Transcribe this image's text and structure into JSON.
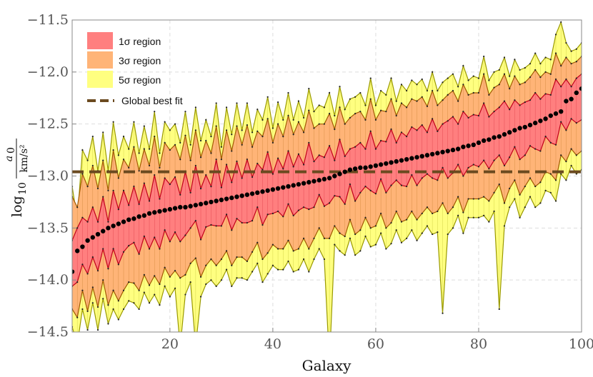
{
  "chart_data": {
    "type": "area",
    "title": "",
    "xlabel": "Galaxy",
    "ylabel": {
      "prefix": "log",
      "subscript": "10",
      "numerator": "a",
      "numerator_subscript": "0",
      "denominator": "km/s²"
    },
    "xlim": [
      1,
      100
    ],
    "ylim": [
      -14.5,
      -11.5
    ],
    "x_ticks": [
      20,
      40,
      60,
      80,
      100
    ],
    "y_ticks": [
      -11.5,
      -12.0,
      -12.5,
      -13.0,
      -13.5,
      -14.0,
      -14.5
    ],
    "y_tick_labels": [
      "−11.5",
      "−12.0",
      "−12.5",
      "−13.0",
      "−13.5",
      "−14.0",
      "−14.5"
    ],
    "grid": true,
    "legend_position": "top-left",
    "global_best_fit": -12.96,
    "colors": {
      "band1": "#ff7f7f",
      "band1_edge": "#c0001a",
      "band3": "#ffb477",
      "band3_edge": "#a05a00",
      "band5": "#ffff80",
      "band5_edge": "#999900",
      "best_fit_line": "#6b4a20",
      "points": "#000000"
    },
    "series": [
      {
        "name": "1σ region",
        "kind": "band",
        "level": 1
      },
      {
        "name": "3σ region",
        "kind": "band",
        "level": 3
      },
      {
        "name": "5σ region",
        "kind": "band",
        "level": 5
      },
      {
        "name": "Global best fit",
        "kind": "line"
      }
    ],
    "x": [
      1,
      2,
      3,
      4,
      5,
      6,
      7,
      8,
      9,
      10,
      11,
      12,
      13,
      14,
      15,
      16,
      17,
      18,
      19,
      20,
      21,
      22,
      23,
      24,
      25,
      26,
      27,
      28,
      29,
      30,
      31,
      32,
      33,
      34,
      35,
      36,
      37,
      38,
      39,
      40,
      41,
      42,
      43,
      44,
      45,
      46,
      47,
      48,
      49,
      50,
      51,
      52,
      53,
      54,
      55,
      56,
      57,
      58,
      59,
      60,
      61,
      62,
      63,
      64,
      65,
      66,
      67,
      68,
      69,
      70,
      71,
      72,
      73,
      74,
      75,
      76,
      77,
      78,
      79,
      80,
      81,
      82,
      83,
      84,
      85,
      86,
      87,
      88,
      89,
      90,
      91,
      92,
      93,
      94,
      95,
      96,
      97,
      98,
      99,
      100
    ],
    "best": [
      -13.92,
      -13.72,
      -13.68,
      -13.62,
      -13.59,
      -13.56,
      -13.53,
      -13.5,
      -13.48,
      -13.46,
      -13.44,
      -13.42,
      -13.41,
      -13.39,
      -13.38,
      -13.36,
      -13.35,
      -13.34,
      -13.33,
      -13.32,
      -13.31,
      -13.3,
      -13.3,
      -13.29,
      -13.28,
      -13.27,
      -13.26,
      -13.25,
      -13.24,
      -13.23,
      -13.22,
      -13.21,
      -13.2,
      -13.19,
      -13.18,
      -13.17,
      -13.16,
      -13.15,
      -13.14,
      -13.13,
      -13.12,
      -13.11,
      -13.1,
      -13.09,
      -13.08,
      -13.07,
      -13.06,
      -13.05,
      -13.04,
      -13.03,
      -13.02,
      -13.0,
      -12.98,
      -12.96,
      -12.94,
      -12.93,
      -12.92,
      -12.92,
      -12.91,
      -12.9,
      -12.89,
      -12.88,
      -12.87,
      -12.86,
      -12.85,
      -12.84,
      -12.83,
      -12.82,
      -12.81,
      -12.8,
      -12.79,
      -12.78,
      -12.77,
      -12.76,
      -12.75,
      -12.74,
      -12.72,
      -12.71,
      -12.7,
      -12.68,
      -12.66,
      -12.65,
      -12.63,
      -12.62,
      -12.6,
      -12.58,
      -12.56,
      -12.54,
      -12.53,
      -12.51,
      -12.49,
      -12.47,
      -12.45,
      -12.42,
      -12.4,
      -12.38,
      -12.28,
      -12.26,
      -12.2,
      -12.16
    ],
    "upper1": [
      -13.62,
      -13.5,
      -13.4,
      -13.44,
      -13.3,
      -13.44,
      -13.2,
      -13.44,
      -13.14,
      -13.32,
      -13.14,
      -13.28,
      -13.1,
      -13.27,
      -13.07,
      -13.24,
      -12.99,
      -13.22,
      -13.02,
      -13.08,
      -13.01,
      -13.18,
      -12.96,
      -13.16,
      -12.9,
      -13.12,
      -12.99,
      -13.1,
      -12.84,
      -13.11,
      -12.89,
      -13.06,
      -12.86,
      -13.02,
      -12.84,
      -13.01,
      -12.88,
      -12.94,
      -12.77,
      -12.98,
      -12.83,
      -12.93,
      -12.76,
      -12.91,
      -12.79,
      -12.89,
      -12.68,
      -12.86,
      -12.8,
      -12.82,
      -12.71,
      -12.85,
      -12.65,
      -12.81,
      -12.74,
      -12.72,
      -12.68,
      -12.74,
      -12.57,
      -12.74,
      -12.66,
      -12.67,
      -12.55,
      -12.68,
      -12.58,
      -12.62,
      -12.53,
      -12.56,
      -12.51,
      -12.58,
      -12.45,
      -12.57,
      -12.5,
      -12.47,
      -12.43,
      -12.5,
      -12.38,
      -12.44,
      -12.41,
      -12.42,
      -12.3,
      -12.43,
      -12.38,
      -12.34,
      -12.28,
      -12.36,
      -12.27,
      -12.32,
      -12.29,
      -12.27,
      -12.2,
      -12.26,
      -12.21,
      -12.22,
      -12.07,
      -12.14,
      -12.07,
      -12.14,
      -12.06,
      -12.02
    ],
    "lower1": [
      -14.06,
      -14.02,
      -13.85,
      -13.94,
      -13.78,
      -13.91,
      -13.7,
      -13.89,
      -13.7,
      -13.85,
      -13.73,
      -13.67,
      -13.64,
      -13.75,
      -13.58,
      -13.7,
      -13.59,
      -13.7,
      -13.52,
      -13.63,
      -13.54,
      -13.63,
      -13.57,
      -13.5,
      -13.43,
      -13.61,
      -13.49,
      -13.47,
      -13.48,
      -13.48,
      -13.37,
      -13.52,
      -13.41,
      -13.45,
      -13.45,
      -13.43,
      -13.3,
      -13.47,
      -13.37,
      -13.36,
      -13.34,
      -13.39,
      -13.27,
      -13.38,
      -13.33,
      -13.3,
      -13.32,
      -13.3,
      -13.18,
      -13.29,
      -13.26,
      -13.19,
      -13.2,
      -13.27,
      -13.08,
      -13.24,
      -13.16,
      -13.1,
      -13.14,
      -13.17,
      -13.03,
      -13.16,
      -13.09,
      -13.04,
      -13.09,
      -13.1,
      -12.99,
      -13.09,
      -13.02,
      -12.98,
      -13.02,
      -13.04,
      -12.92,
      -13.02,
      -12.97,
      -12.89,
      -13.0,
      -12.92,
      -12.89,
      -12.91,
      -12.85,
      -12.93,
      -12.85,
      -12.8,
      -12.9,
      -12.82,
      -12.72,
      -12.84,
      -12.8,
      -12.71,
      -12.74,
      -12.76,
      -12.62,
      -12.68,
      -12.7,
      -12.48,
      -12.56,
      -12.45,
      -12.49,
      -12.46
    ],
    "upper3": [
      -13.2,
      -13.3,
      -12.98,
      -13.1,
      -12.9,
      -13.12,
      -12.85,
      -13.14,
      -12.75,
      -13.02,
      -12.84,
      -12.92,
      -12.72,
      -12.95,
      -12.74,
      -12.9,
      -12.62,
      -12.92,
      -12.68,
      -12.75,
      -12.7,
      -12.84,
      -12.61,
      -12.85,
      -12.56,
      -12.82,
      -12.66,
      -12.78,
      -12.52,
      -12.84,
      -12.56,
      -12.76,
      -12.52,
      -12.7,
      -12.51,
      -12.72,
      -12.57,
      -12.62,
      -12.45,
      -12.68,
      -12.5,
      -12.62,
      -12.42,
      -12.6,
      -12.48,
      -12.58,
      -12.37,
      -12.54,
      -12.5,
      -12.5,
      -12.4,
      -12.55,
      -12.34,
      -12.5,
      -12.44,
      -12.4,
      -12.38,
      -12.46,
      -12.26,
      -12.46,
      -12.37,
      -12.38,
      -12.26,
      -12.42,
      -12.3,
      -12.34,
      -12.26,
      -12.28,
      -12.24,
      -12.33,
      -12.18,
      -12.32,
      -12.27,
      -12.22,
      -12.18,
      -12.28,
      -12.12,
      -12.22,
      -12.2,
      -12.2,
      -12.02,
      -12.22,
      -12.15,
      -12.12,
      -12.02,
      -12.16,
      -12.04,
      -12.12,
      -12.1,
      -12.05,
      -11.98,
      -12.05,
      -12.0,
      -12.02,
      -11.82,
      -11.94,
      -11.86,
      -11.92,
      -11.9,
      -11.85
    ],
    "lower3": [
      -14.28,
      -14.36,
      -14.1,
      -14.3,
      -14.07,
      -14.26,
      -14.0,
      -14.24,
      -14.1,
      -14.2,
      -14.1,
      -14.02,
      -14.03,
      -14.1,
      -13.95,
      -14.05,
      -13.96,
      -14.04,
      -13.88,
      -13.97,
      -13.91,
      -13.98,
      -13.95,
      -13.84,
      -13.79,
      -13.97,
      -13.86,
      -13.8,
      -13.86,
      -13.8,
      -13.72,
      -13.86,
      -13.78,
      -13.78,
      -13.82,
      -13.73,
      -13.64,
      -13.8,
      -13.74,
      -13.66,
      -13.7,
      -13.7,
      -13.62,
      -13.72,
      -13.7,
      -13.6,
      -13.7,
      -13.6,
      -13.5,
      -13.6,
      -13.6,
      -13.48,
      -13.55,
      -13.58,
      -13.42,
      -13.56,
      -13.52,
      -13.4,
      -13.5,
      -13.48,
      -13.36,
      -13.5,
      -13.45,
      -13.34,
      -13.44,
      -13.42,
      -13.34,
      -13.42,
      -13.36,
      -13.3,
      -13.36,
      -13.34,
      -13.26,
      -13.36,
      -13.3,
      -13.2,
      -13.35,
      -13.22,
      -13.22,
      -13.22,
      -13.2,
      -13.24,
      -13.16,
      -13.08,
      -13.26,
      -13.12,
      -13.04,
      -13.18,
      -13.1,
      -13.02,
      -13.1,
      -13.06,
      -12.96,
      -12.98,
      -13.04,
      -12.8,
      -12.86,
      -12.74,
      -12.8,
      -12.76
    ],
    "upper5": [
      -13.1,
      -13.42,
      -12.75,
      -12.85,
      -12.62,
      -12.95,
      -12.58,
      -12.95,
      -12.48,
      -12.8,
      -12.62,
      -12.74,
      -12.48,
      -12.78,
      -12.52,
      -12.74,
      -12.38,
      -12.78,
      -12.48,
      -12.56,
      -12.5,
      -12.68,
      -12.38,
      -12.7,
      -12.34,
      -12.66,
      -12.46,
      -12.62,
      -12.3,
      -12.72,
      -12.34,
      -12.6,
      -12.3,
      -12.56,
      -12.3,
      -12.58,
      -12.36,
      -12.46,
      -12.24,
      -12.54,
      -12.29,
      -12.46,
      -12.2,
      -12.46,
      -12.28,
      -12.44,
      -12.16,
      -12.38,
      -12.32,
      -12.34,
      -12.2,
      -12.42,
      -12.14,
      -12.36,
      -12.26,
      -12.24,
      -12.2,
      -12.32,
      -12.06,
      -12.32,
      -12.18,
      -12.22,
      -12.06,
      -12.28,
      -12.12,
      -12.18,
      -12.08,
      -12.12,
      -12.07,
      -12.18,
      -12.0,
      -12.18,
      -12.1,
      -12.06,
      -12.02,
      -12.14,
      -11.94,
      -12.08,
      -12.04,
      -12.06,
      -11.85,
      -12.08,
      -12.0,
      -11.98,
      -11.86,
      -12.04,
      -11.88,
      -11.98,
      -11.96,
      -11.92,
      -11.82,
      -11.92,
      -11.86,
      -11.88,
      -11.64,
      -11.52,
      -11.72,
      -11.8,
      -11.78,
      -11.72
    ],
    "lower5": [
      -14.45,
      -14.62,
      -14.28,
      -14.48,
      -14.22,
      -14.48,
      -14.18,
      -14.42,
      -14.28,
      -14.38,
      -14.28,
      -14.2,
      -14.22,
      -14.28,
      -14.12,
      -14.22,
      -14.14,
      -14.24,
      -14.06,
      -14.16,
      -14.08,
      -14.64,
      -14.14,
      -14.02,
      -14.64,
      -14.16,
      -14.04,
      -14.0,
      -14.06,
      -14.0,
      -13.9,
      -14.06,
      -13.98,
      -13.98,
      -14.0,
      -13.92,
      -13.84,
      -14.02,
      -13.94,
      -13.86,
      -13.9,
      -13.9,
      -13.82,
      -13.92,
      -13.9,
      -13.8,
      -13.92,
      -13.8,
      -13.7,
      -13.8,
      -14.8,
      -13.66,
      -13.72,
      -13.76,
      -13.6,
      -13.76,
      -13.72,
      -13.58,
      -13.68,
      -13.66,
      -13.55,
      -13.7,
      -13.65,
      -13.52,
      -13.64,
      -13.6,
      -13.52,
      -13.62,
      -13.55,
      -13.48,
      -13.56,
      -13.54,
      -14.32,
      -13.56,
      -13.5,
      -13.38,
      -13.55,
      -13.4,
      -13.4,
      -13.4,
      -13.38,
      -13.44,
      -13.34,
      -14.28,
      -13.48,
      -13.3,
      -13.22,
      -13.4,
      -13.3,
      -13.2,
      -13.3,
      -13.26,
      -13.14,
      -13.16,
      -13.24,
      -12.98,
      -13.04,
      -12.9,
      -12.98,
      -12.94
    ]
  }
}
